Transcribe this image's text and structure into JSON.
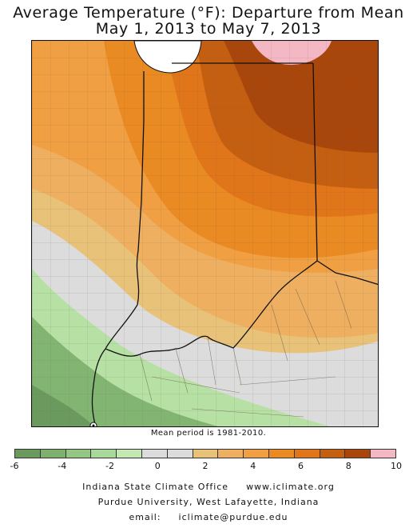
{
  "title": {
    "line1": "Average Temperature (°F): Departure from Mean",
    "line2": "May 1, 2013 to May 7, 2013"
  },
  "note": "Mean period is 1981-2010.",
  "legend": {
    "colors": [
      "#6b9a5e",
      "#7eb06e",
      "#95c784",
      "#a9d99a",
      "#c3e8b2",
      "#dcdcdc",
      "#dcdcdc",
      "#e9c27a",
      "#eeb060",
      "#f0a043",
      "#e98a23",
      "#e0751a",
      "#c45f12",
      "#a8460c",
      "#f4b8c4"
    ],
    "tick_labels": [
      "-6",
      "-4",
      "-2",
      "0",
      "2",
      "4",
      "6",
      "8",
      "10"
    ]
  },
  "credits": {
    "org": "Indiana State Climate Office",
    "website": "www.iclimate.org",
    "university": "Purdue University, West Lafayette, Indiana",
    "email_label": "email:",
    "email": "iclimate@purdue.edu"
  },
  "map_colors": {
    "minus6": "#6b9a5e",
    "minus4": "#82b572",
    "minus2": "#b6e0a4",
    "zero": "#dcdcdc",
    "plus1": "#e9c27a",
    "plus2": "#eeb060",
    "plus3": "#f0a043",
    "plus4": "#e98a23",
    "plus5": "#e0751a",
    "plus7": "#c45f12",
    "plus8": "#a8460c",
    "plus10": "#f4b8c4",
    "lake": "#ffffff"
  }
}
